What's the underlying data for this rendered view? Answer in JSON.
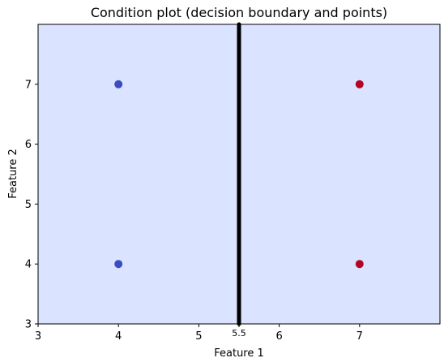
{
  "chart_data": {
    "type": "scatter",
    "title": "Condition plot (decision boundary and points)",
    "xlabel": "Feature 1",
    "ylabel": "Feature 2",
    "xlim": [
      3,
      8
    ],
    "ylim": [
      3,
      8
    ],
    "x_ticks": [
      3,
      4,
      5,
      5.5,
      6,
      7
    ],
    "x_tick_labels": [
      "3",
      "4",
      "5",
      "5.5",
      "6",
      "7"
    ],
    "y_ticks": [
      3,
      4,
      5,
      6,
      7
    ],
    "y_tick_labels": [
      "3",
      "4",
      "5",
      "6",
      "7"
    ],
    "grid": false,
    "legend": "none",
    "background_fill": "#dae3ff",
    "decision_boundary": {
      "x": 5.5,
      "color": "#000000"
    },
    "points": [
      {
        "x": 4,
        "y": 7,
        "class": 0,
        "color": "#3b4cc0"
      },
      {
        "x": 4,
        "y": 4,
        "class": 0,
        "color": "#3b4cc0"
      },
      {
        "x": 7,
        "y": 7,
        "class": 1,
        "color": "#b40426"
      },
      {
        "x": 7,
        "y": 4,
        "class": 1,
        "color": "#b40426"
      }
    ]
  }
}
